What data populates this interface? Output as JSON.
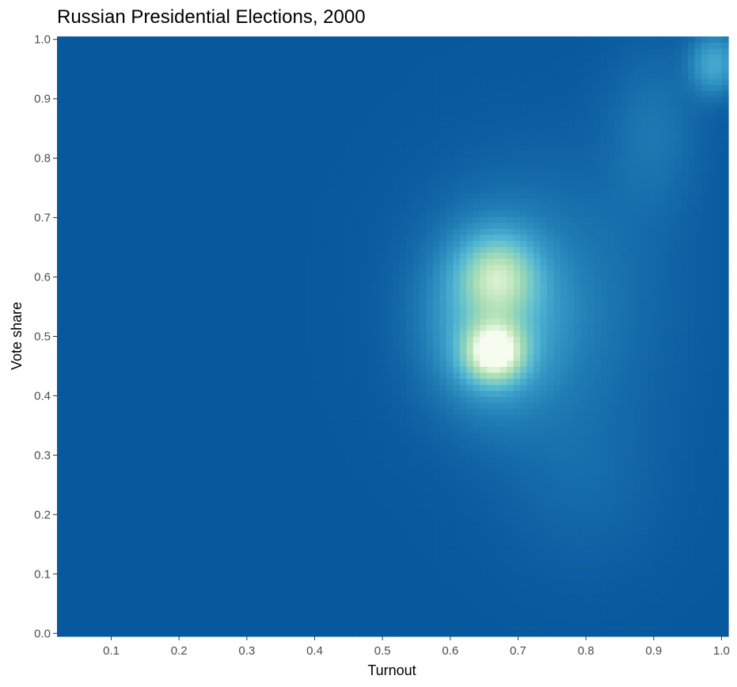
{
  "chart_data": {
    "type": "heatmap",
    "title": "Russian Presidential Elections, 2000",
    "xlabel": "Turnout",
    "ylabel": "Vote share",
    "xlim": [
      0.02,
      1.01
    ],
    "ylim": [
      -0.005,
      1.005
    ],
    "x_ticks": [
      "0.1",
      "0.2",
      "0.3",
      "0.4",
      "0.5",
      "0.6",
      "0.7",
      "0.8",
      "0.9",
      "1.0"
    ],
    "y_ticks": [
      "0.0",
      "0.1",
      "0.2",
      "0.3",
      "0.4",
      "0.5",
      "0.6",
      "0.7",
      "0.8",
      "0.9",
      "1.0"
    ],
    "grid": false,
    "legend": "none",
    "color_scale": [
      "#08589e",
      "#2b8cbe",
      "#4eb3d3",
      "#7bccc4",
      "#a8ddb5",
      "#ccebc5",
      "#f7fcf0"
    ],
    "density_peaks": [
      {
        "turnout": 0.665,
        "vote_share": 0.475,
        "intensity": 1.0
      },
      {
        "turnout": 0.67,
        "vote_share": 0.6,
        "intensity": 0.55
      },
      {
        "turnout": 0.99,
        "vote_share": 0.96,
        "intensity": 0.28
      }
    ]
  }
}
